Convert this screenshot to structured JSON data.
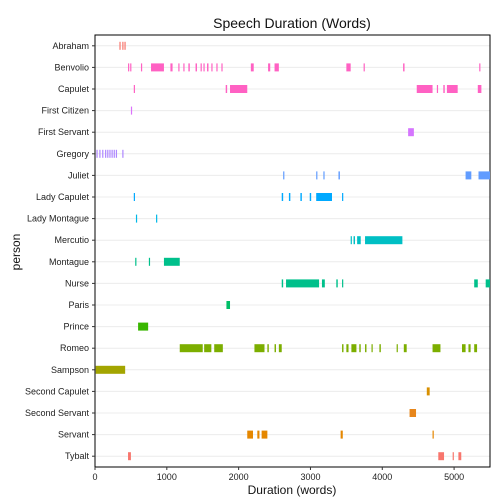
{
  "chart_data": {
    "type": "scatter",
    "title": "Speech Duration (Words)",
    "xlabel": "Duration (words)",
    "ylabel": "person",
    "xlim": [
      0,
      5500
    ],
    "x_ticks": [
      0,
      1000,
      2000,
      3000,
      4000,
      5000
    ],
    "grid": true,
    "legend": "none",
    "mark": "speech segment (start, end) in words",
    "categories": [
      "Abraham",
      "Benvolio",
      "Capulet",
      "First Citizen",
      "First Servant",
      "Gregory",
      "Juliet",
      "Lady Capulet",
      "Lady Montague",
      "Mercutio",
      "Montague",
      "Nurse",
      "Paris",
      "Prince",
      "Romeo",
      "Sampson",
      "Second Capulet",
      "Second Servant",
      "Servant",
      "Tybalt"
    ],
    "series": [
      {
        "name": "Abraham",
        "color": "#F8766D",
        "segments": [
          [
            340,
            350
          ],
          [
            380,
            388
          ],
          [
            410,
            418
          ]
        ]
      },
      {
        "name": "Benvolio",
        "color": "#FF61C3",
        "segments": [
          [
            460,
            470
          ],
          [
            490,
            500
          ],
          [
            640,
            652
          ],
          [
            780,
            960
          ],
          [
            1050,
            1080
          ],
          [
            1160,
            1170
          ],
          [
            1230,
            1240
          ],
          [
            1300,
            1320
          ],
          [
            1400,
            1420
          ],
          [
            1470,
            1480
          ],
          [
            1510,
            1520
          ],
          [
            1560,
            1580
          ],
          [
            1620,
            1630
          ],
          [
            1690,
            1700
          ],
          [
            1760,
            1770
          ],
          [
            2170,
            2210
          ],
          [
            2410,
            2440
          ],
          [
            2500,
            2560
          ],
          [
            3500,
            3560
          ],
          [
            3740,
            3750
          ],
          [
            4290,
            4310
          ],
          [
            5350,
            5360
          ]
        ]
      },
      {
        "name": "Capulet",
        "color": "#FF61C3",
        "segments": [
          [
            540,
            556
          ],
          [
            1820,
            1840
          ],
          [
            1880,
            2120
          ],
          [
            4480,
            4700
          ],
          [
            4760,
            4770
          ],
          [
            4850,
            4870
          ],
          [
            4900,
            5050
          ],
          [
            5330,
            5380
          ]
        ]
      },
      {
        "name": "First Citizen",
        "color": "#DB72FB",
        "segments": [
          [
            500,
            512
          ]
        ]
      },
      {
        "name": "First Servant",
        "color": "#D575FE",
        "segments": [
          [
            4360,
            4440
          ]
        ]
      },
      {
        "name": "Gregory",
        "color": "#AE87FF",
        "segments": [
          [
            20,
            30
          ],
          [
            60,
            70
          ],
          [
            100,
            110
          ],
          [
            140,
            150
          ],
          [
            170,
            180
          ],
          [
            200,
            210
          ],
          [
            230,
            240
          ],
          [
            260,
            270
          ],
          [
            290,
            300
          ],
          [
            380,
            390
          ]
        ]
      },
      {
        "name": "Juliet",
        "color": "#619CFF",
        "segments": [
          [
            2620,
            2630
          ],
          [
            3080,
            3090
          ],
          [
            3180,
            3190
          ],
          [
            3390,
            3410
          ],
          [
            5160,
            5240
          ],
          [
            5340,
            5500
          ]
        ]
      },
      {
        "name": "Lady Capulet",
        "color": "#00A9FF",
        "segments": [
          [
            540,
            550
          ],
          [
            2600,
            2620
          ],
          [
            2700,
            2720
          ],
          [
            2860,
            2880
          ],
          [
            2990,
            3010
          ],
          [
            3080,
            3300
          ],
          [
            3440,
            3450
          ]
        ]
      },
      {
        "name": "Lady Montague",
        "color": "#00B8E7",
        "segments": [
          [
            570,
            580
          ],
          [
            850,
            860
          ]
        ]
      },
      {
        "name": "Mercutio",
        "color": "#00BFC4",
        "segments": [
          [
            3560,
            3570
          ],
          [
            3600,
            3620
          ],
          [
            3650,
            3700
          ],
          [
            3760,
            4280
          ]
        ]
      },
      {
        "name": "Montague",
        "color": "#00C08B",
        "segments": [
          [
            560,
            570
          ],
          [
            750,
            760
          ],
          [
            960,
            1180
          ]
        ]
      },
      {
        "name": "Nurse",
        "color": "#00C08B",
        "segments": [
          [
            2600,
            2620
          ],
          [
            2660,
            3120
          ],
          [
            3160,
            3200
          ],
          [
            3360,
            3380
          ],
          [
            3440,
            3450
          ],
          [
            5280,
            5330
          ],
          [
            5440,
            5500
          ]
        ]
      },
      {
        "name": "Paris",
        "color": "#00BE67",
        "segments": [
          [
            1830,
            1880
          ]
        ]
      },
      {
        "name": "Prince",
        "color": "#39B600",
        "segments": [
          [
            600,
            740
          ]
        ]
      },
      {
        "name": "Romeo",
        "color": "#7CAE00",
        "segments": [
          [
            1180,
            1500
          ],
          [
            1520,
            1620
          ],
          [
            1660,
            1780
          ],
          [
            2220,
            2360
          ],
          [
            2400,
            2420
          ],
          [
            2500,
            2520
          ],
          [
            2560,
            2600
          ],
          [
            3440,
            3460
          ],
          [
            3500,
            3530
          ],
          [
            3570,
            3640
          ],
          [
            3680,
            3700
          ],
          [
            3760,
            3780
          ],
          [
            3850,
            3860
          ],
          [
            3960,
            3980
          ],
          [
            4200,
            4210
          ],
          [
            4300,
            4340
          ],
          [
            4700,
            4810
          ],
          [
            5110,
            5160
          ],
          [
            5200,
            5230
          ],
          [
            5280,
            5320
          ]
        ]
      },
      {
        "name": "Sampson",
        "color": "#A3A500",
        "segments": [
          [
            10,
            420
          ]
        ]
      },
      {
        "name": "Second Capulet",
        "color": "#D89000",
        "segments": [
          [
            4620,
            4660
          ]
        ]
      },
      {
        "name": "Second Servant",
        "color": "#E7861B",
        "segments": [
          [
            4380,
            4470
          ]
        ]
      },
      {
        "name": "Servant",
        "color": "#E58700",
        "segments": [
          [
            2120,
            2200
          ],
          [
            2260,
            2290
          ],
          [
            2320,
            2400
          ],
          [
            3420,
            3450
          ],
          [
            4700,
            4710
          ]
        ]
      },
      {
        "name": "Tybalt",
        "color": "#F8766D",
        "segments": [
          [
            460,
            500
          ],
          [
            4780,
            4860
          ],
          [
            4980,
            4990
          ],
          [
            5060,
            5100
          ]
        ]
      }
    ]
  }
}
